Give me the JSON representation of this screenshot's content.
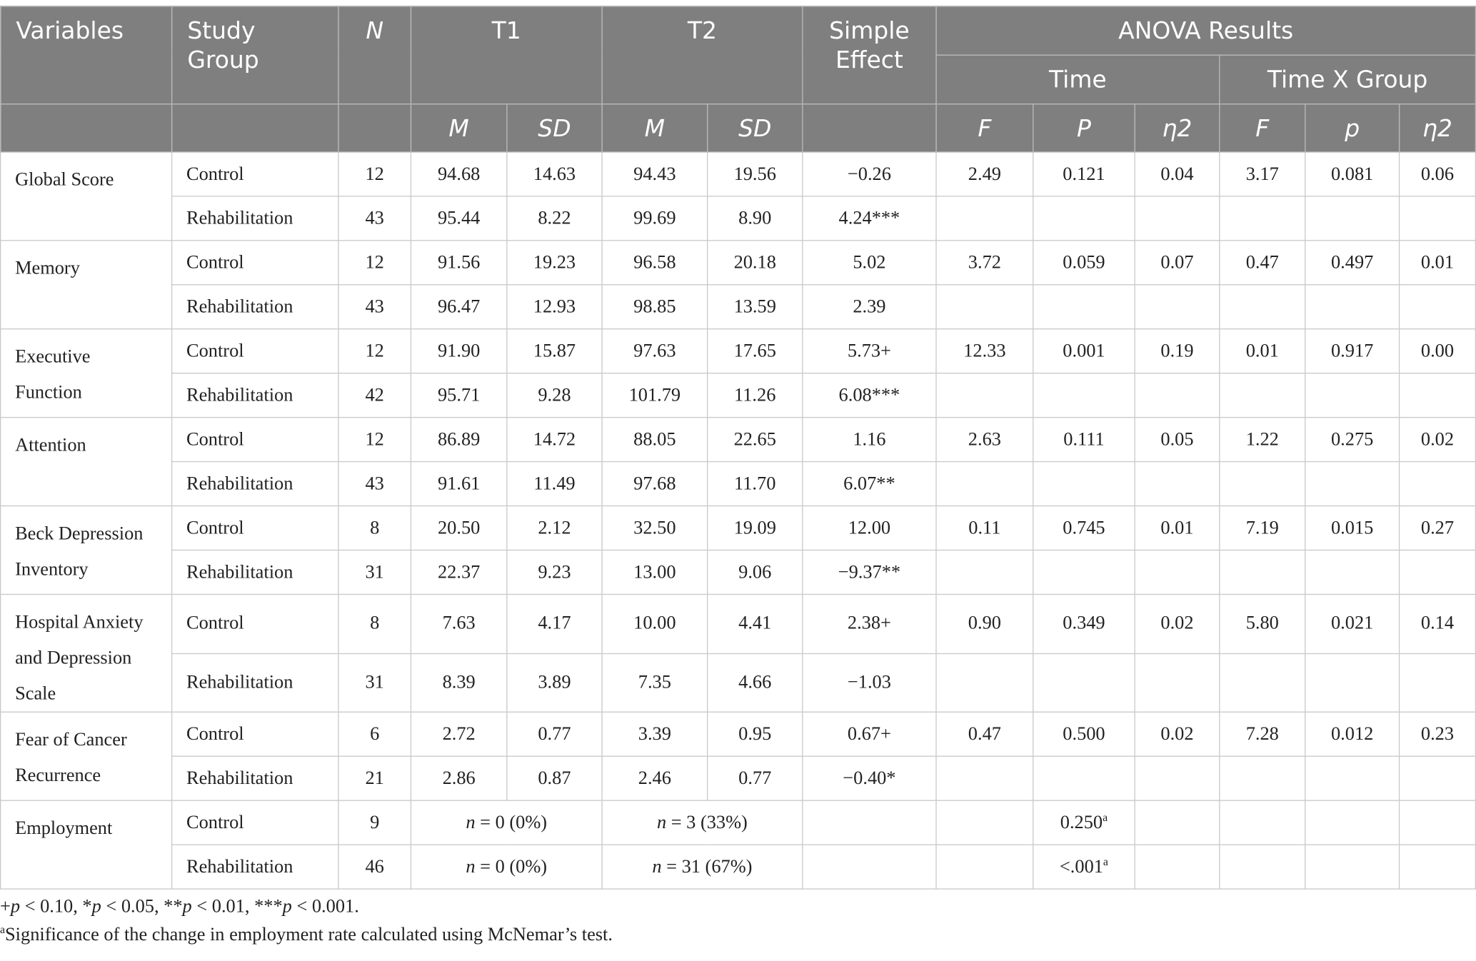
{
  "header": {
    "variables": "Variables",
    "study_group": "Study Group",
    "n": "N",
    "t1": "T1",
    "t2": "T2",
    "simple_effect": "Simple Effect",
    "anova": "ANOVA Results",
    "time": "Time",
    "time_x_group": "Time X Group",
    "m": "M",
    "sd": "SD",
    "f": "F",
    "p_upper": "P",
    "p_lower": "p",
    "eta": "η",
    "eta_exp": "2"
  },
  "rows": [
    {
      "variable": "Global Score",
      "control": {
        "group": "Control",
        "n": "12",
        "t1m": "94.68",
        "t1sd": "14.63",
        "t2m": "94.43",
        "t2sd": "19.56",
        "se": "−0.26",
        "tf": "2.49",
        "tp": "0.121",
        "teta": "0.04",
        "gf": "3.17",
        "gp": "0.081",
        "geta": "0.06"
      },
      "rehab": {
        "group": "Rehabilitation",
        "n": "43",
        "t1m": "95.44",
        "t1sd": "8.22",
        "t2m": "99.69",
        "t2sd": "8.90",
        "se": "4.24***"
      }
    },
    {
      "variable": "Memory",
      "control": {
        "group": "Control",
        "n": "12",
        "t1m": "91.56",
        "t1sd": "19.23",
        "t2m": "96.58",
        "t2sd": "20.18",
        "se": "5.02",
        "tf": "3.72",
        "tp": "0.059",
        "teta": "0.07",
        "gf": "0.47",
        "gp": "0.497",
        "geta": "0.01"
      },
      "rehab": {
        "group": "Rehabilitation",
        "n": "43",
        "t1m": "96.47",
        "t1sd": "12.93",
        "t2m": "98.85",
        "t2sd": "13.59",
        "se": "2.39"
      }
    },
    {
      "variable": "Executive Function",
      "control": {
        "group": "Control",
        "n": "12",
        "t1m": "91.90",
        "t1sd": "15.87",
        "t2m": "97.63",
        "t2sd": "17.65",
        "se": "5.73+",
        "tf": "12.33",
        "tp": "0.001",
        "teta": "0.19",
        "gf": "0.01",
        "gp": "0.917",
        "geta": "0.00"
      },
      "rehab": {
        "group": "Rehabilitation",
        "n": "42",
        "t1m": "95.71",
        "t1sd": "9.28",
        "t2m": "101.79",
        "t2sd": "11.26",
        "se": "6.08***"
      }
    },
    {
      "variable": "Attention",
      "control": {
        "group": "Control",
        "n": "12",
        "t1m": "86.89",
        "t1sd": "14.72",
        "t2m": "88.05",
        "t2sd": "22.65",
        "se": "1.16",
        "tf": "2.63",
        "tp": "0.111",
        "teta": "0.05",
        "gf": "1.22",
        "gp": "0.275",
        "geta": "0.02"
      },
      "rehab": {
        "group": "Rehabilitation",
        "n": "43",
        "t1m": "91.61",
        "t1sd": "11.49",
        "t2m": "97.68",
        "t2sd": "11.70",
        "se": "6.07**"
      }
    },
    {
      "variable": "Beck Depression Inventory",
      "control": {
        "group": "Control",
        "n": "8",
        "t1m": "20.50",
        "t1sd": "2.12",
        "t2m": "32.50",
        "t2sd": "19.09",
        "se": "12.00",
        "tf": "0.11",
        "tp": "0.745",
        "teta": "0.01",
        "gf": "7.19",
        "gp": "0.015",
        "geta": "0.27"
      },
      "rehab": {
        "group": "Rehabilitation",
        "n": "31",
        "t1m": "22.37",
        "t1sd": "9.23",
        "t2m": "13.00",
        "t2sd": "9.06",
        "se": "−9.37**"
      }
    },
    {
      "variable": "Hospital Anxiety and Depression Scale",
      "control": {
        "group": "Control",
        "n": "8",
        "t1m": "7.63",
        "t1sd": "4.17",
        "t2m": "10.00",
        "t2sd": "4.41",
        "se": "2.38+",
        "tf": "0.90",
        "tp": "0.349",
        "teta": "0.02",
        "gf": "5.80",
        "gp": "0.021",
        "geta": "0.14"
      },
      "rehab": {
        "group": "Rehabilitation",
        "n": "31",
        "t1m": "8.39",
        "t1sd": "3.89",
        "t2m": "7.35",
        "t2sd": "4.66",
        "se": "−1.03"
      }
    },
    {
      "variable": "Fear of Cancer Recurrence",
      "control": {
        "group": "Control",
        "n": "6",
        "t1m": "2.72",
        "t1sd": "0.77",
        "t2m": "3.39",
        "t2sd": "0.95",
        "se": "0.67+",
        "tf": "0.47",
        "tp": "0.500",
        "teta": "0.02",
        "gf": "7.28",
        "gp": "0.012",
        "geta": "0.23"
      },
      "rehab": {
        "group": "Rehabilitation",
        "n": "21",
        "t1m": "2.86",
        "t1sd": "0.87",
        "t2m": "2.46",
        "t2sd": "0.77",
        "se": "−0.40*"
      }
    }
  ],
  "employment": {
    "variable": "Employment",
    "control": {
      "group": "Control",
      "n": "9",
      "n_sym": "n",
      "t1": " = 0 (0%)",
      "t2": " = 3 (33%)",
      "p": "0.250",
      "p_sup": "a"
    },
    "rehab": {
      "group": "Rehabilitation",
      "n": "46",
      "n_sym": "n",
      "t1": " = 0 (0%)",
      "t2": " = 31 (67%)",
      "p": "<.001",
      "p_sup": "a"
    }
  },
  "footnotes": {
    "plus": "+",
    "p": "p",
    "part1": " < 0.10, *",
    "part2": " < 0.05, **",
    "part3": " < 0.01, ***",
    "part4": " < 0.001.",
    "a_mark": "a",
    "a_text": "Significance of the change in employment rate calculated using McNemar’s test."
  }
}
